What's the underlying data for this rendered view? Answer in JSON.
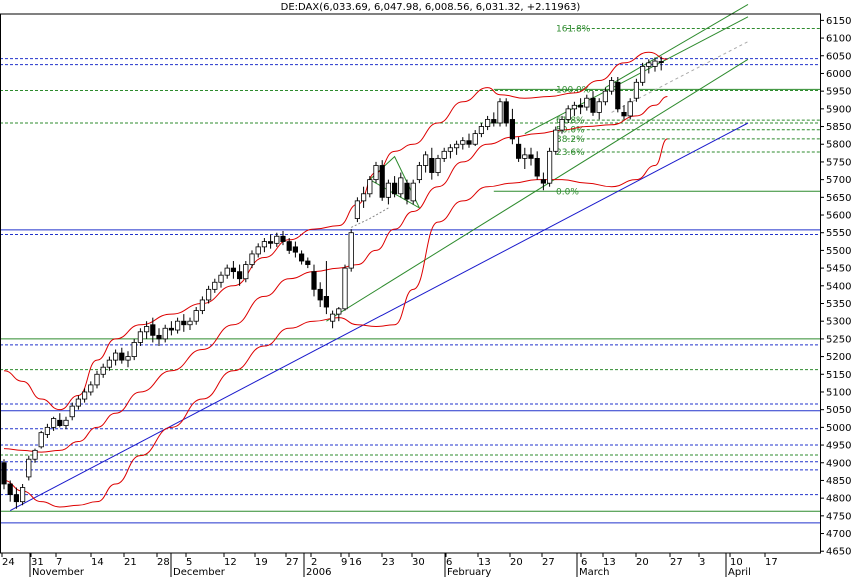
{
  "chart_data": {
    "type": "candlestick",
    "title": "DE:DAX(6,033.69, 6,047.98, 6,008.56, 6,031.32, +2.11963)",
    "yrange": [
      4640,
      6180
    ],
    "ylabels": [
      6150,
      6100,
      6050,
      6000,
      5950,
      5900,
      5850,
      5800,
      5750,
      5700,
      5650,
      5600,
      5550,
      5500,
      5450,
      5400,
      5350,
      5300,
      5250,
      5200,
      5150,
      5100,
      5050,
      5000,
      4950,
      4900,
      4850,
      4800,
      4750,
      4700,
      4650
    ],
    "x_ticks": [
      "24",
      "31",
      "7",
      "14",
      "21",
      "28",
      "5",
      "12",
      "19",
      "27",
      "2",
      "9",
      "16",
      "23",
      "30",
      "6",
      "13",
      "20",
      "27",
      "6",
      "13",
      "20",
      "27",
      "3",
      "10",
      "17"
    ],
    "month_labels": [
      "November",
      "December",
      "2006",
      "February",
      "March",
      "April"
    ],
    "fib_labels": [
      "161.8%",
      "100.0%",
      "61.8%",
      "50.0%",
      "38.2%",
      "23.6%",
      "0.0%"
    ],
    "fib_values": [
      6127,
      5955,
      5868,
      5841,
      5815,
      5778,
      5667
    ],
    "support_lines": [
      6042,
      6025,
      5952,
      5860,
      5558,
      5545,
      5250,
      5233,
      5163,
      5066,
      5047,
      4996,
      4950,
      4922,
      4903,
      4880,
      4810,
      4763,
      4730
    ],
    "candles": [
      {
        "o": 4900,
        "h": 4910,
        "l": 4825,
        "c": 4840
      },
      {
        "o": 4840,
        "h": 4850,
        "l": 4790,
        "c": 4810
      },
      {
        "o": 4810,
        "h": 4830,
        "l": 4770,
        "c": 4790
      },
      {
        "o": 4790,
        "h": 4840,
        "l": 4780,
        "c": 4830
      },
      {
        "o": 4860,
        "h": 4920,
        "l": 4850,
        "c": 4910
      },
      {
        "o": 4910,
        "h": 4940,
        "l": 4900,
        "c": 4935
      },
      {
        "o": 4945,
        "h": 4990,
        "l": 4940,
        "c": 4985
      },
      {
        "o": 4980,
        "h": 5010,
        "l": 4970,
        "c": 5000
      },
      {
        "o": 5000,
        "h": 5030,
        "l": 4990,
        "c": 5025
      },
      {
        "o": 5020,
        "h": 5040,
        "l": 5000,
        "c": 5005
      },
      {
        "o": 5005,
        "h": 5030,
        "l": 4995,
        "c": 5020
      },
      {
        "o": 5030,
        "h": 5070,
        "l": 5020,
        "c": 5060
      },
      {
        "o": 5060,
        "h": 5090,
        "l": 5050,
        "c": 5080
      },
      {
        "o": 5080,
        "h": 5110,
        "l": 5070,
        "c": 5100
      },
      {
        "o": 5100,
        "h": 5130,
        "l": 5090,
        "c": 5120
      },
      {
        "o": 5120,
        "h": 5160,
        "l": 5110,
        "c": 5150
      },
      {
        "o": 5150,
        "h": 5180,
        "l": 5140,
        "c": 5170
      },
      {
        "o": 5170,
        "h": 5200,
        "l": 5160,
        "c": 5190
      },
      {
        "o": 5190,
        "h": 5220,
        "l": 5175,
        "c": 5210
      },
      {
        "o": 5210,
        "h": 5225,
        "l": 5180,
        "c": 5190
      },
      {
        "o": 5190,
        "h": 5215,
        "l": 5170,
        "c": 5200
      },
      {
        "o": 5200,
        "h": 5250,
        "l": 5190,
        "c": 5240
      },
      {
        "o": 5240,
        "h": 5280,
        "l": 5230,
        "c": 5270
      },
      {
        "o": 5270,
        "h": 5300,
        "l": 5250,
        "c": 5285
      },
      {
        "o": 5290,
        "h": 5310,
        "l": 5240,
        "c": 5260
      },
      {
        "o": 5260,
        "h": 5280,
        "l": 5230,
        "c": 5250
      },
      {
        "o": 5250,
        "h": 5290,
        "l": 5240,
        "c": 5280
      },
      {
        "o": 5280,
        "h": 5300,
        "l": 5260,
        "c": 5275
      },
      {
        "o": 5275,
        "h": 5310,
        "l": 5265,
        "c": 5300
      },
      {
        "o": 5300,
        "h": 5320,
        "l": 5270,
        "c": 5290
      },
      {
        "o": 5290,
        "h": 5310,
        "l": 5275,
        "c": 5300
      },
      {
        "o": 5300,
        "h": 5340,
        "l": 5290,
        "c": 5330
      },
      {
        "o": 5330,
        "h": 5370,
        "l": 5320,
        "c": 5360
      },
      {
        "o": 5360,
        "h": 5400,
        "l": 5350,
        "c": 5390
      },
      {
        "o": 5390,
        "h": 5420,
        "l": 5380,
        "c": 5410
      },
      {
        "o": 5410,
        "h": 5440,
        "l": 5395,
        "c": 5430
      },
      {
        "o": 5430,
        "h": 5460,
        "l": 5420,
        "c": 5450
      },
      {
        "o": 5450,
        "h": 5470,
        "l": 5420,
        "c": 5440
      },
      {
        "o": 5440,
        "h": 5460,
        "l": 5400,
        "c": 5420
      },
      {
        "o": 5420,
        "h": 5470,
        "l": 5410,
        "c": 5460
      },
      {
        "o": 5460,
        "h": 5500,
        "l": 5450,
        "c": 5490
      },
      {
        "o": 5490,
        "h": 5520,
        "l": 5480,
        "c": 5510
      },
      {
        "o": 5510,
        "h": 5535,
        "l": 5495,
        "c": 5525
      },
      {
        "o": 5525,
        "h": 5545,
        "l": 5505,
        "c": 5520
      },
      {
        "o": 5520,
        "h": 5550,
        "l": 5510,
        "c": 5540
      },
      {
        "o": 5540,
        "h": 5555,
        "l": 5515,
        "c": 5525
      },
      {
        "o": 5525,
        "h": 5535,
        "l": 5490,
        "c": 5500
      },
      {
        "o": 5510,
        "h": 5525,
        "l": 5480,
        "c": 5495
      },
      {
        "o": 5490,
        "h": 5500,
        "l": 5460,
        "c": 5470
      },
      {
        "o": 5470,
        "h": 5480,
        "l": 5450,
        "c": 5460
      },
      {
        "o": 5440,
        "h": 5460,
        "l": 5370,
        "c": 5390
      },
      {
        "o": 5390,
        "h": 5410,
        "l": 5340,
        "c": 5360
      },
      {
        "o": 5370,
        "h": 5470,
        "l": 5320,
        "c": 5340
      },
      {
        "o": 5300,
        "h": 5330,
        "l": 5280,
        "c": 5320
      },
      {
        "o": 5320,
        "h": 5340,
        "l": 5300,
        "c": 5335
      },
      {
        "o": 5335,
        "h": 5460,
        "l": 5330,
        "c": 5450
      },
      {
        "o": 5450,
        "h": 5560,
        "l": 5440,
        "c": 5550
      },
      {
        "o": 5590,
        "h": 5650,
        "l": 5580,
        "c": 5640
      },
      {
        "o": 5640,
        "h": 5680,
        "l": 5620,
        "c": 5660
      },
      {
        "o": 5660,
        "h": 5710,
        "l": 5650,
        "c": 5700
      },
      {
        "o": 5700,
        "h": 5750,
        "l": 5690,
        "c": 5740
      },
      {
        "o": 5740,
        "h": 5755,
        "l": 5640,
        "c": 5650
      },
      {
        "o": 5650,
        "h": 5700,
        "l": 5630,
        "c": 5690
      },
      {
        "o": 5690,
        "h": 5710,
        "l": 5650,
        "c": 5660
      },
      {
        "o": 5660,
        "h": 5720,
        "l": 5650,
        "c": 5705
      },
      {
        "o": 5690,
        "h": 5700,
        "l": 5630,
        "c": 5645
      },
      {
        "o": 5640,
        "h": 5700,
        "l": 5630,
        "c": 5690
      },
      {
        "o": 5700,
        "h": 5750,
        "l": 5690,
        "c": 5740
      },
      {
        "o": 5740,
        "h": 5780,
        "l": 5720,
        "c": 5770
      },
      {
        "o": 5760,
        "h": 5790,
        "l": 5700,
        "c": 5720
      },
      {
        "o": 5720,
        "h": 5770,
        "l": 5710,
        "c": 5760
      },
      {
        "o": 5760,
        "h": 5790,
        "l": 5750,
        "c": 5780
      },
      {
        "o": 5780,
        "h": 5800,
        "l": 5760,
        "c": 5790
      },
      {
        "o": 5790,
        "h": 5810,
        "l": 5770,
        "c": 5800
      },
      {
        "o": 5800,
        "h": 5820,
        "l": 5785,
        "c": 5810
      },
      {
        "o": 5810,
        "h": 5830,
        "l": 5790,
        "c": 5800
      },
      {
        "o": 5800,
        "h": 5840,
        "l": 5795,
        "c": 5830
      },
      {
        "o": 5830,
        "h": 5860,
        "l": 5820,
        "c": 5850
      },
      {
        "o": 5850,
        "h": 5880,
        "l": 5840,
        "c": 5870
      },
      {
        "o": 5870,
        "h": 5890,
        "l": 5850,
        "c": 5860
      },
      {
        "o": 5860,
        "h": 5930,
        "l": 5850,
        "c": 5920
      },
      {
        "o": 5920,
        "h": 5930,
        "l": 5850,
        "c": 5860
      },
      {
        "o": 5870,
        "h": 5900,
        "l": 5800,
        "c": 5815
      },
      {
        "o": 5800,
        "h": 5820,
        "l": 5750,
        "c": 5760
      },
      {
        "o": 5760,
        "h": 5790,
        "l": 5730,
        "c": 5770
      },
      {
        "o": 5770,
        "h": 5790,
        "l": 5740,
        "c": 5760
      },
      {
        "o": 5760,
        "h": 5780,
        "l": 5700,
        "c": 5710
      },
      {
        "o": 5700,
        "h": 5720,
        "l": 5670,
        "c": 5690
      },
      {
        "o": 5690,
        "h": 5790,
        "l": 5680,
        "c": 5780
      },
      {
        "o": 5780,
        "h": 5850,
        "l": 5770,
        "c": 5840
      },
      {
        "o": 5840,
        "h": 5880,
        "l": 5830,
        "c": 5870
      },
      {
        "o": 5870,
        "h": 5910,
        "l": 5860,
        "c": 5900
      },
      {
        "o": 5900,
        "h": 5920,
        "l": 5880,
        "c": 5910
      },
      {
        "o": 5910,
        "h": 5930,
        "l": 5885,
        "c": 5905
      },
      {
        "o": 5905,
        "h": 5940,
        "l": 5895,
        "c": 5930
      },
      {
        "o": 5930,
        "h": 5950,
        "l": 5880,
        "c": 5890
      },
      {
        "o": 5890,
        "h": 5930,
        "l": 5870,
        "c": 5920
      },
      {
        "o": 5920,
        "h": 5960,
        "l": 5910,
        "c": 5950
      },
      {
        "o": 5950,
        "h": 5990,
        "l": 5940,
        "c": 5980
      },
      {
        "o": 5975,
        "h": 5990,
        "l": 5890,
        "c": 5900
      },
      {
        "o": 5890,
        "h": 5910,
        "l": 5870,
        "c": 5880
      },
      {
        "o": 5880,
        "h": 5930,
        "l": 5870,
        "c": 5920
      },
      {
        "o": 5930,
        "h": 5985,
        "l": 5920,
        "c": 5975
      },
      {
        "o": 5975,
        "h": 6030,
        "l": 5965,
        "c": 6020
      },
      {
        "o": 6020,
        "h": 6040,
        "l": 6000,
        "c": 6030
      },
      {
        "o": 6020,
        "h": 6045,
        "l": 6005,
        "c": 6035
      },
      {
        "o": 6033.69,
        "h": 6047.98,
        "l": 6008.56,
        "c": 6031.32
      }
    ],
    "bb_upper": [
      [
        0,
        5160
      ],
      [
        3,
        5130
      ],
      [
        6,
        5080
      ],
      [
        9,
        5050
      ],
      [
        12,
        5090
      ],
      [
        15,
        5190
      ],
      [
        18,
        5250
      ],
      [
        22,
        5290
      ],
      [
        27,
        5320
      ],
      [
        32,
        5350
      ],
      [
        37,
        5400
      ],
      [
        42,
        5480
      ],
      [
        46,
        5530
      ],
      [
        50,
        5560
      ],
      [
        54,
        5570
      ],
      [
        57,
        5630
      ],
      [
        60,
        5720
      ],
      [
        63,
        5780
      ],
      [
        66,
        5800
      ],
      [
        70,
        5860
      ],
      [
        74,
        5920
      ],
      [
        78,
        5960
      ],
      [
        80,
        5940
      ],
      [
        84,
        5930
      ],
      [
        88,
        5935
      ],
      [
        92,
        5945
      ],
      [
        96,
        5980
      ],
      [
        100,
        6030
      ],
      [
        104,
        6060
      ],
      [
        107,
        6040
      ]
    ],
    "bb_lower": [
      [
        0,
        4850
      ],
      [
        3,
        4820
      ],
      [
        6,
        4790
      ],
      [
        9,
        4775
      ],
      [
        12,
        4780
      ],
      [
        15,
        4790
      ],
      [
        18,
        4840
      ],
      [
        22,
        4920
      ],
      [
        27,
        5000
      ],
      [
        32,
        5080
      ],
      [
        37,
        5160
      ],
      [
        42,
        5230
      ],
      [
        46,
        5280
      ],
      [
        50,
        5300
      ],
      [
        54,
        5310
      ],
      [
        57,
        5290
      ],
      [
        60,
        5285
      ],
      [
        63,
        5290
      ],
      [
        66,
        5390
      ],
      [
        70,
        5580
      ],
      [
        74,
        5640
      ],
      [
        78,
        5680
      ],
      [
        82,
        5690
      ],
      [
        86,
        5700
      ],
      [
        90,
        5700
      ],
      [
        94,
        5690
      ],
      [
        98,
        5680
      ],
      [
        102,
        5700
      ],
      [
        105,
        5740
      ],
      [
        107,
        5815
      ]
    ],
    "bb_middle": [
      [
        0,
        4940
      ],
      [
        3,
        4935
      ],
      [
        6,
        4930
      ],
      [
        9,
        4935
      ],
      [
        12,
        4960
      ],
      [
        15,
        5000
      ],
      [
        18,
        5040
      ],
      [
        22,
        5100
      ],
      [
        27,
        5160
      ],
      [
        32,
        5220
      ],
      [
        37,
        5290
      ],
      [
        42,
        5370
      ],
      [
        46,
        5420
      ],
      [
        50,
        5440
      ],
      [
        54,
        5450
      ],
      [
        57,
        5460
      ],
      [
        60,
        5500
      ],
      [
        63,
        5560
      ],
      [
        66,
        5610
      ],
      [
        70,
        5680
      ],
      [
        74,
        5750
      ],
      [
        78,
        5800
      ],
      [
        82,
        5820
      ],
      [
        86,
        5830
      ],
      [
        90,
        5840
      ],
      [
        94,
        5850
      ],
      [
        98,
        5855
      ],
      [
        102,
        5880
      ],
      [
        105,
        5910
      ],
      [
        107,
        5935
      ]
    ],
    "trend_blue": [
      [
        1,
        4765
      ],
      [
        120,
        5860
      ]
    ],
    "channel_lower": [
      [
        52,
        5300
      ],
      [
        120,
        6040
      ]
    ],
    "channel_upper": [
      [
        84,
        5830
      ],
      [
        120,
        6160
      ]
    ],
    "channel_top": [
      [
        97,
        5960
      ],
      [
        120,
        6195
      ]
    ],
    "fib_dashed_gray": [
      [
        98,
        5890
      ],
      [
        120,
        6090
      ]
    ],
    "triangle": [
      [
        59,
        5700
      ],
      [
        63,
        5765
      ],
      [
        67,
        5620
      ]
    ],
    "bb_dash_arc": [
      [
        56,
        5565
      ],
      [
        59,
        5590
      ],
      [
        62,
        5620
      ]
    ]
  }
}
